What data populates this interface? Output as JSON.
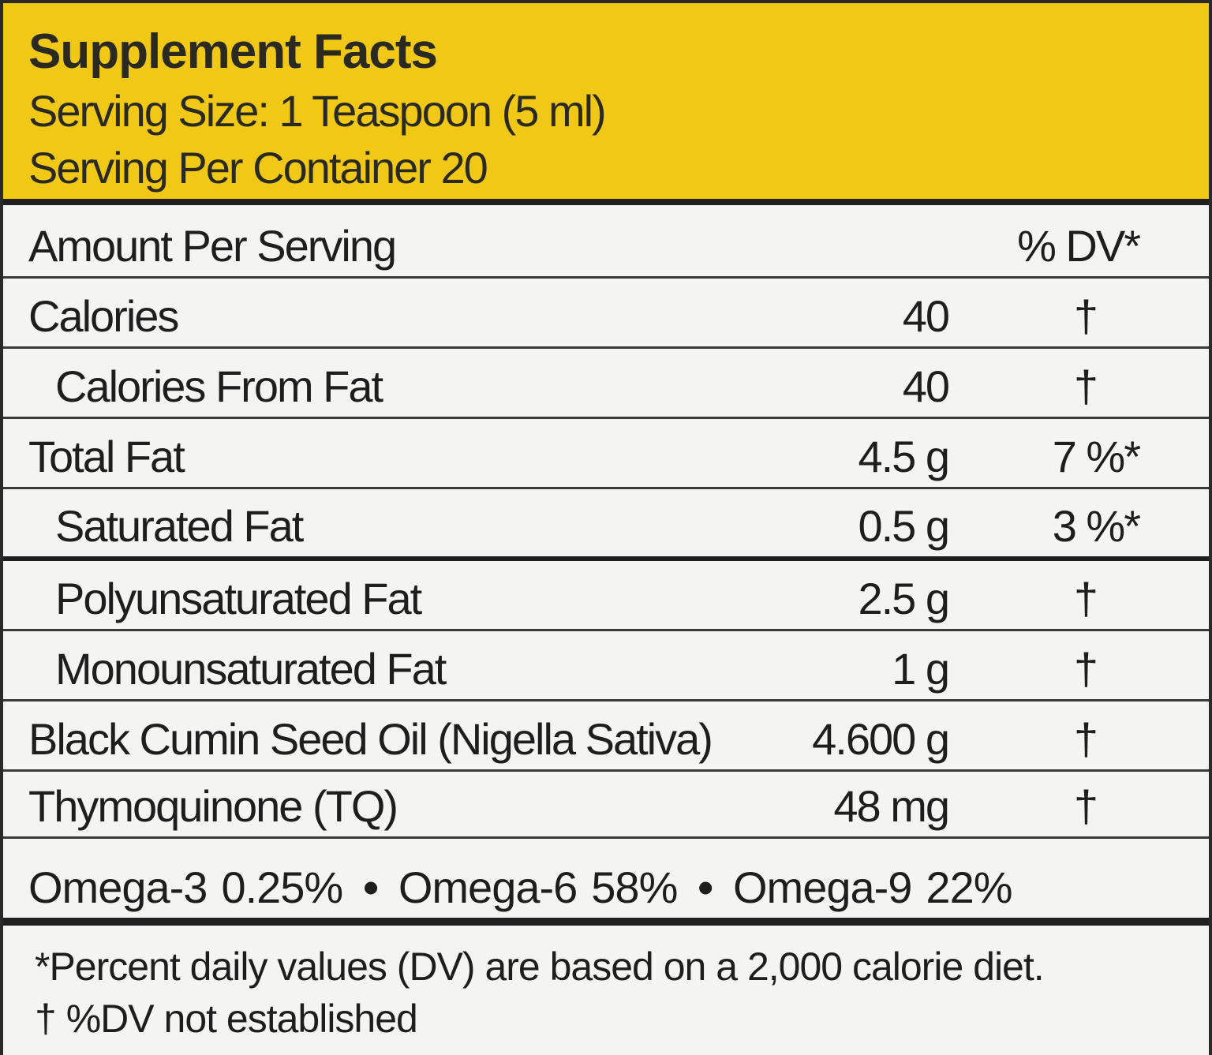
{
  "header": {
    "title": "Supplement Facts",
    "serving_size": "Serving Size: 1 Teaspoon (5 ml)",
    "servings_per_container": "Serving Per Container 20"
  },
  "table": {
    "column_header_left": "Amount Per Serving",
    "column_header_right": "% DV*",
    "rows": [
      {
        "label": "Calories",
        "amount": "40",
        "dv": "†"
      },
      {
        "label": "Calories From Fat",
        "amount": "40",
        "dv": "†"
      },
      {
        "label": "Total Fat",
        "amount": "4.5 g",
        "dv": "7 %*"
      },
      {
        "label": "Saturated Fat",
        "amount": "0.5 g",
        "dv": "3 %*"
      },
      {
        "label": "Polyunsaturated Fat",
        "amount": "2.5 g",
        "dv": "†"
      },
      {
        "label": "Monounsaturated Fat",
        "amount": "1 g",
        "dv": "†"
      },
      {
        "label": "Black Cumin Seed Oil (Nigella Sativa)",
        "amount": "4.600 g",
        "dv": "†"
      },
      {
        "label": "Thymoquinone (TQ)",
        "amount": "48 mg",
        "dv": "†"
      }
    ],
    "omega": {
      "omega3_label": "Omega-3",
      "omega3_value": "0.25%",
      "omega6_label": "Omega-6",
      "omega6_value": "58%",
      "omega9_label": "Omega-9",
      "omega9_value": "22%",
      "separator": "•"
    }
  },
  "footer": {
    "line1": "*Percent daily values (DV) are based on a 2,000 calorie diet.",
    "line2": "† %DV not established"
  },
  "colors": {
    "header_bg": "#f2c816",
    "body_bg": "#f4f4f2",
    "text": "#1e1e1e"
  }
}
